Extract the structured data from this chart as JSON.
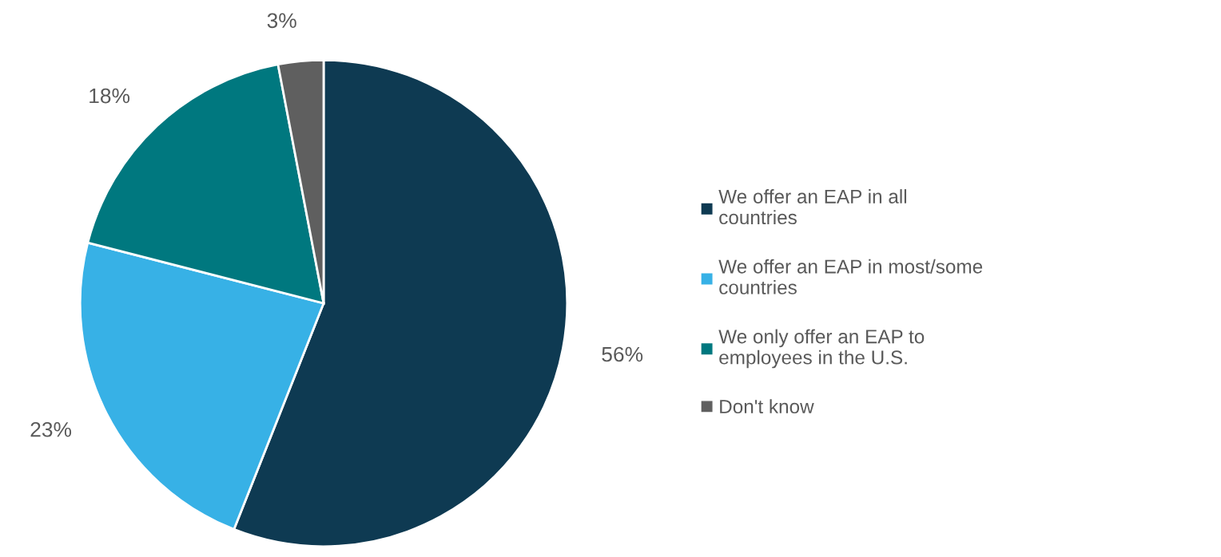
{
  "chart_data": {
    "type": "pie",
    "categories": [
      "We offer an EAP in all countries",
      "We offer an EAP in most/some countries",
      "We only offer an EAP to employees in the U.S.",
      "Don't know"
    ],
    "values": [
      56,
      23,
      18,
      3
    ],
    "value_labels": [
      "56%",
      "23%",
      "18%",
      "3%"
    ],
    "colors": [
      "#0e3a52",
      "#37b1e6",
      "#00787f",
      "#5f5f5f"
    ],
    "legend": "right"
  }
}
